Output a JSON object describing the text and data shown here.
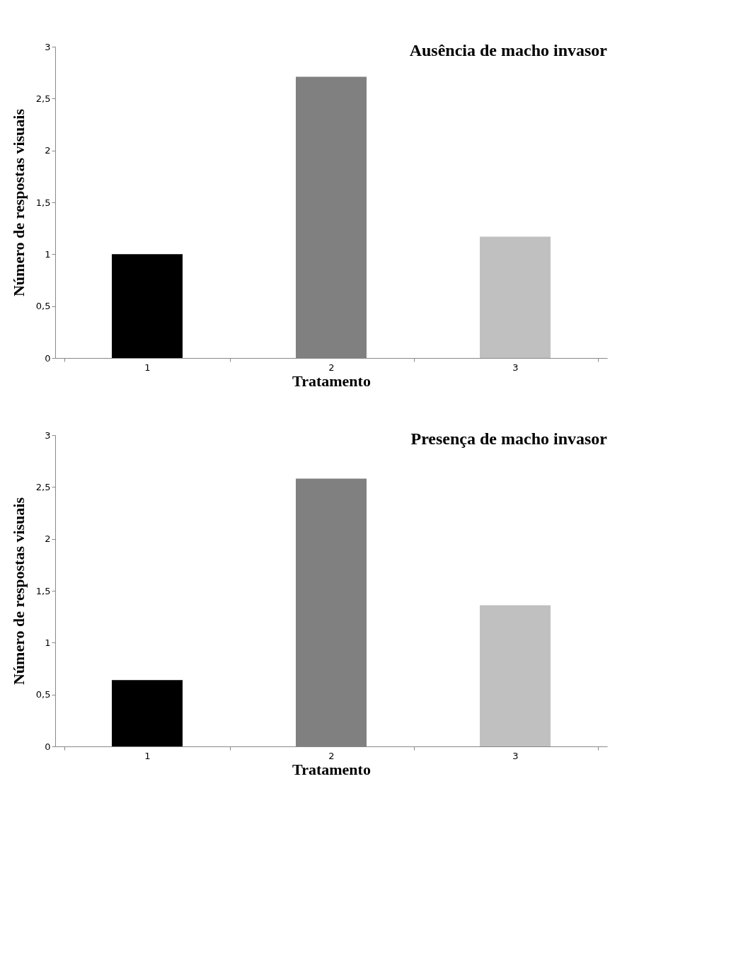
{
  "chart_data": [
    {
      "type": "bar",
      "title": "Ausência de macho invasor",
      "xlabel": "Tratamento",
      "ylabel": "Número de respostas visuais",
      "categories": [
        "1",
        "2",
        "3"
      ],
      "values": [
        1.0,
        2.71,
        1.17
      ],
      "colors": [
        "#000000",
        "#808080",
        "#c0c0c0"
      ],
      "ylim": [
        0,
        3
      ],
      "yticks": [
        0,
        {
          "value": 0.5,
          "label": "0,5"
        },
        1,
        {
          "value": 1.5,
          "label": "1,5"
        },
        2,
        {
          "value": 2.5,
          "label": "2,5"
        },
        3
      ],
      "grid": false
    },
    {
      "type": "bar",
      "title": "Presença de macho invasor",
      "xlabel": "Tratamento",
      "ylabel": "Número de respostas visuais",
      "categories": [
        "1",
        "2",
        "3"
      ],
      "values": [
        0.64,
        2.58,
        1.36
      ],
      "colors": [
        "#000000",
        "#808080",
        "#c0c0c0"
      ],
      "ylim": [
        0,
        3
      ],
      "yticks": [
        0,
        {
          "value": 0.5,
          "label": "0,5"
        },
        1,
        {
          "value": 1.5,
          "label": "1,5"
        },
        2,
        {
          "value": 2.5,
          "label": "2,5"
        },
        3
      ],
      "grid": false
    }
  ]
}
